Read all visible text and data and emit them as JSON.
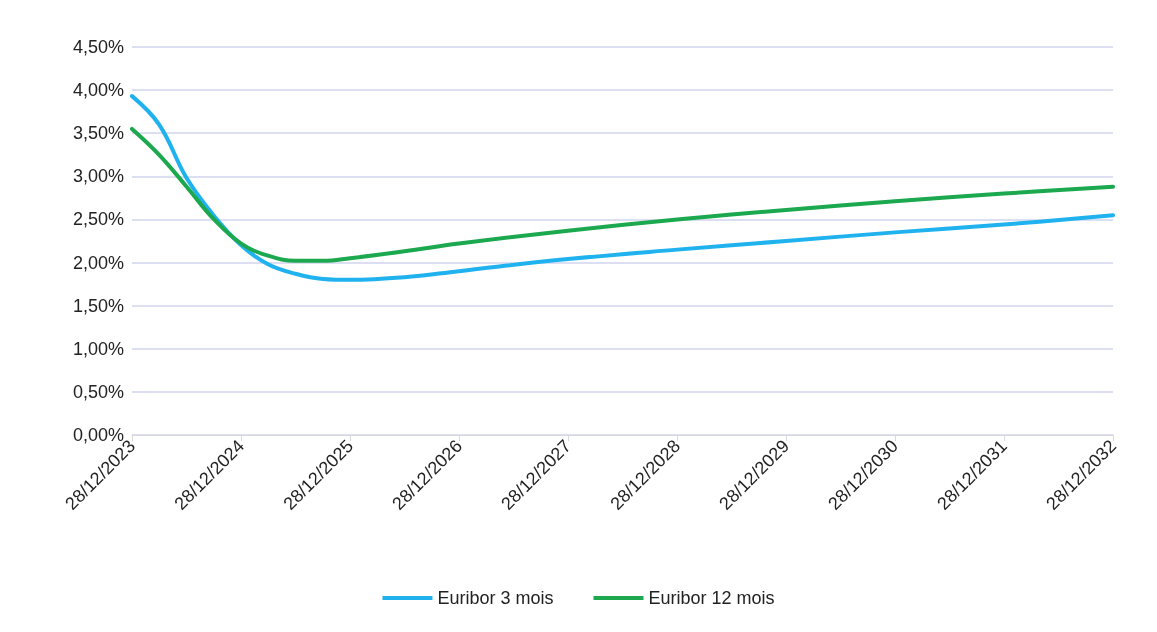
{
  "chart_data": {
    "type": "line",
    "x": [
      "2023-12-28",
      "2024-03-28",
      "2024-06-28",
      "2024-09-28",
      "2024-12-28",
      "2025-03-28",
      "2025-06-28",
      "2025-09-28",
      "2025-12-28",
      "2026-06-28",
      "2026-12-28",
      "2027-12-28",
      "2028-12-28",
      "2029-12-28",
      "2030-12-28",
      "2031-12-28",
      "2032-12-28"
    ],
    "series": [
      {
        "name": "Euribor 3 mois",
        "color": "#1fb2ee",
        "values": [
          3.93,
          3.6,
          2.98,
          2.54,
          2.2,
          1.98,
          1.87,
          1.81,
          1.8,
          1.83,
          1.9,
          2.04,
          2.15,
          2.25,
          2.35,
          2.44,
          2.55
        ]
      },
      {
        "name": "Euribor 12 mois",
        "color": "#1ba84e",
        "values": [
          3.55,
          3.25,
          2.88,
          2.5,
          2.22,
          2.08,
          2.02,
          2.02,
          2.05,
          2.13,
          2.22,
          2.37,
          2.5,
          2.61,
          2.71,
          2.8,
          2.88
        ]
      }
    ],
    "xlim": [
      "2023-12-28",
      "2032-12-28"
    ],
    "xticks": [
      {
        "value": "2023-12-28",
        "label": "28/12/2023"
      },
      {
        "value": "2024-12-28",
        "label": "28/12/2024"
      },
      {
        "value": "2025-12-28",
        "label": "28/12/2025"
      },
      {
        "value": "2026-12-28",
        "label": "28/12/2026"
      },
      {
        "value": "2027-12-28",
        "label": "28/12/2027"
      },
      {
        "value": "2028-12-28",
        "label": "28/12/2028"
      },
      {
        "value": "2029-12-28",
        "label": "28/12/2029"
      },
      {
        "value": "2030-12-28",
        "label": "28/12/2030"
      },
      {
        "value": "2031-12-28",
        "label": "28/12/2031"
      },
      {
        "value": "2032-12-28",
        "label": "28/12/2032"
      }
    ],
    "ylim": [
      0,
      4.5
    ],
    "yticks": [
      {
        "value": 0,
        "label": "0,00%"
      },
      {
        "value": 0.5,
        "label": "0,50%"
      },
      {
        "value": 1,
        "label": "1,00%"
      },
      {
        "value": 1.5,
        "label": "1,50%"
      },
      {
        "value": 2,
        "label": "2,00%"
      },
      {
        "value": 2.5,
        "label": "2,50%"
      },
      {
        "value": 3,
        "label": "3,00%"
      },
      {
        "value": 3.5,
        "label": "3,50%"
      },
      {
        "value": 4,
        "label": "4,00%"
      },
      {
        "value": 4.5,
        "label": "4,50%"
      }
    ],
    "grid": "y",
    "legend": "bottom",
    "marker": "none",
    "line_style": "solid"
  }
}
